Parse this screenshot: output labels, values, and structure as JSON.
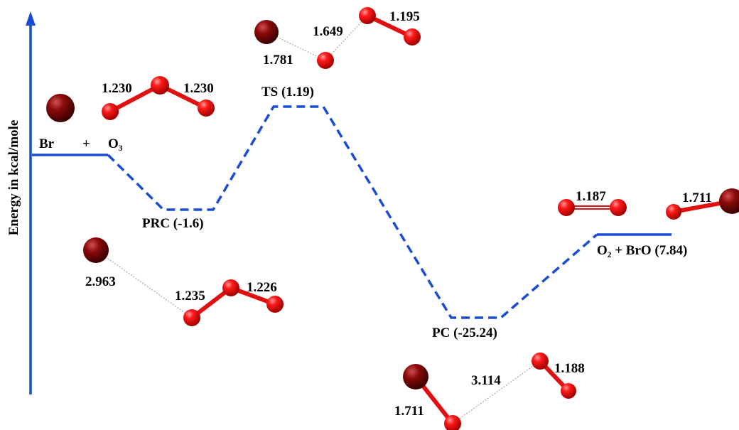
{
  "axis": {
    "label": "Energy in kcal/mole"
  },
  "reactants": {
    "br": "Br",
    "plus": "+",
    "o3": "O₃",
    "bonds": [
      "1.230",
      "1.230"
    ]
  },
  "levels": {
    "prc": "PRC (-1.6)",
    "ts": "TS (1.19)",
    "pc": "PC (-25.24)",
    "products": "O₂ + BrO (7.84)"
  },
  "prc_bonds": [
    "2.963",
    "1.235",
    "1.226"
  ],
  "ts_bonds": [
    "1.781",
    "1.649",
    "1.195"
  ],
  "product_bonds": [
    "1.187",
    "1.711"
  ],
  "pc_bonds": [
    "1.711",
    "3.114",
    "1.188"
  ]
}
